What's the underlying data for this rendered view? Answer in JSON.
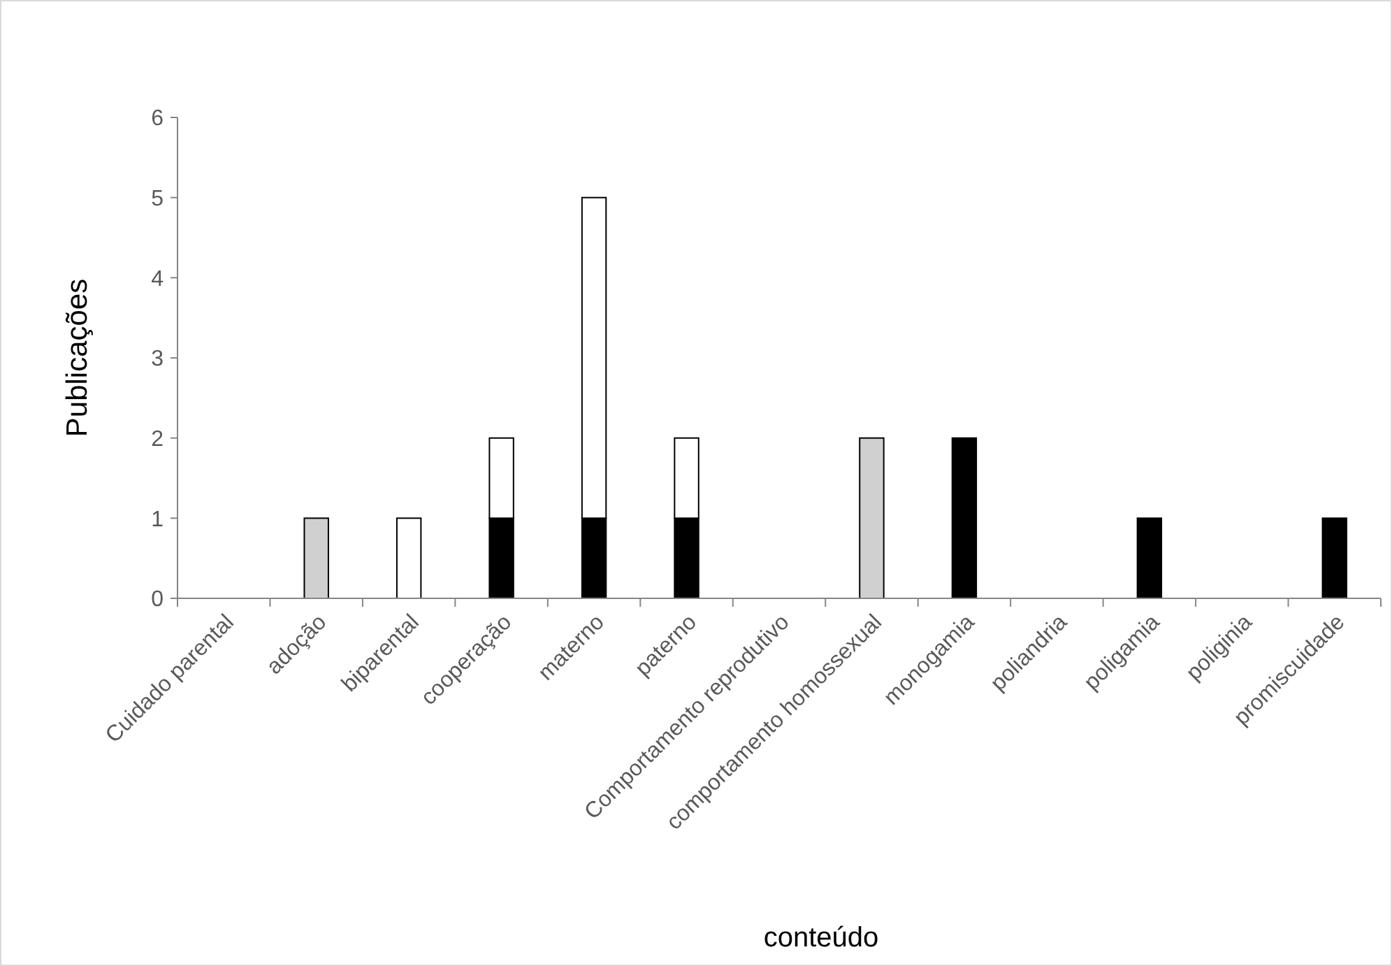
{
  "chart_data": {
    "type": "bar",
    "stacked": true,
    "xlabel": "conteúdo",
    "ylabel": "Publicações",
    "categories": [
      "Cuidado parental",
      "adoção",
      "biparental",
      "cooperação",
      "materno",
      "paterno",
      "Comportamento reprodutivo",
      "comportamento homossexual",
      "monogamia",
      "poliandria",
      "poligamia",
      "poliginia",
      "promiscuidade"
    ],
    "series": [
      {
        "color": "#000000",
        "values": [
          0,
          0,
          0,
          1,
          1,
          1,
          0,
          0,
          2,
          0,
          1,
          0,
          1
        ]
      },
      {
        "color": "#ffffff",
        "values": [
          0,
          0,
          1,
          1,
          4,
          1,
          0,
          0,
          0,
          0,
          0,
          0,
          0
        ]
      },
      {
        "color": "#d0d0d0",
        "values": [
          0,
          1,
          0,
          0,
          0,
          0,
          0,
          2,
          0,
          0,
          0,
          0,
          0
        ]
      }
    ],
    "ylim": [
      0,
      6
    ],
    "yticks": [
      0,
      1,
      2,
      3,
      4,
      5,
      6
    ],
    "grid": false
  }
}
